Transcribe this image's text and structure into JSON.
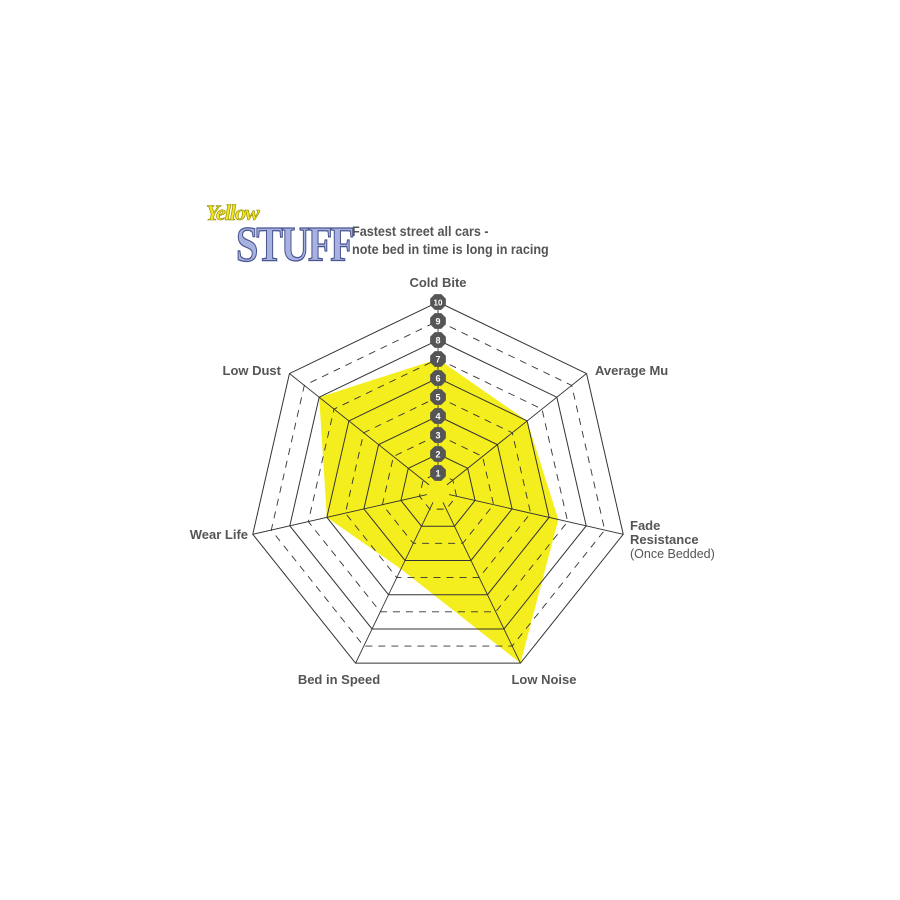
{
  "logo": {
    "line1": "Yellow",
    "line2": "STUFF"
  },
  "note": {
    "line1": "Fastest street all cars -",
    "line2": "note bed in time is long in racing"
  },
  "chart_data": {
    "type": "radar",
    "axes": [
      "Cold Bite",
      "Average Mu",
      "Fade Resistance",
      "Low Noise",
      "Bed in Speed",
      "Wear Life",
      "Low Dust"
    ],
    "axis_sublabels": {
      "Fade Resistance": "(Once Bedded)"
    },
    "values": [
      7,
      6,
      6.5,
      10,
      4.5,
      6,
      8
    ],
    "range": [
      0,
      10
    ],
    "tick_labels": [
      "1",
      "2",
      "3",
      "4",
      "5",
      "6",
      "7",
      "8",
      "9",
      "10"
    ],
    "fill_color": "#f5ee1e",
    "grid_color": "#333333",
    "badge_color": "#555555"
  }
}
